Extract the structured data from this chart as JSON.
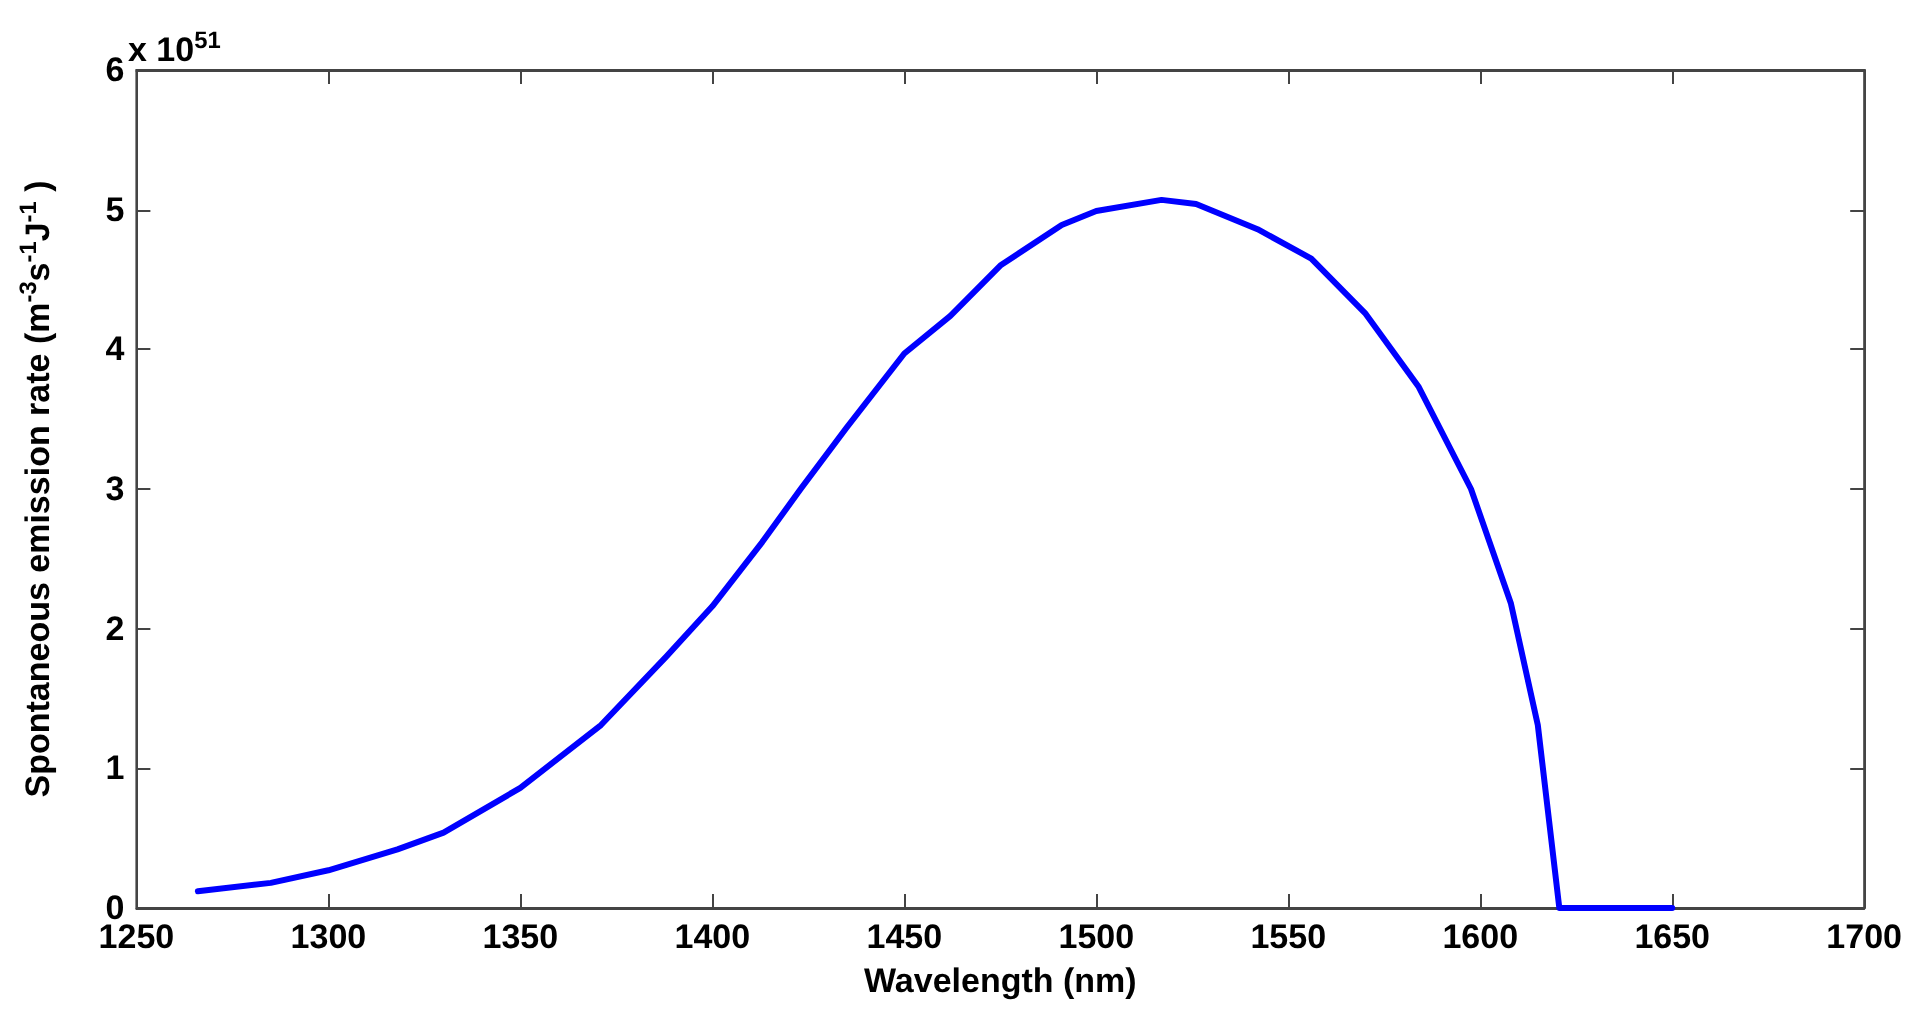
{
  "chart_data": {
    "type": "line",
    "xlabel": "Wavelength (nm)",
    "ylabel": "Spontaneous emission rate (m$^{-3}$s$^{-1}$J$^{-1}$ )",
    "annotations": [
      "x 10$^{51}$"
    ],
    "x": [
      1266,
      1285,
      1300,
      1318,
      1330,
      1350,
      1371,
      1388,
      1400,
      1413,
      1423,
      1435,
      1450,
      1462,
      1475,
      1491,
      1500,
      1517,
      1526,
      1542,
      1556,
      1570,
      1584,
      1597.6,
      1608,
      1615,
      1620.6,
      1650
    ],
    "series": [
      {
        "color": "#0000ff",
        "values": [
          0.12,
          0.18,
          0.27,
          0.42,
          0.54,
          0.86,
          1.31,
          1.8,
          2.16,
          2.62,
          3.0,
          3.44,
          3.97,
          4.24,
          4.6,
          4.89,
          4.99,
          5.07,
          5.04,
          4.86,
          4.65,
          4.26,
          3.73,
          3.0,
          2.18,
          1.31,
          0,
          0
        ]
      }
    ],
    "xlim": [
      1250,
      1700
    ],
    "xticks": [
      1250,
      1300,
      1350,
      1400,
      1450,
      1500,
      1550,
      1600,
      1650,
      1700
    ],
    "ylim": [
      0,
      6
    ],
    "yticks": [
      0,
      1,
      2,
      3,
      4,
      5,
      6
    ],
    "grid": false,
    "marker": "none",
    "line_style": "solid"
  }
}
